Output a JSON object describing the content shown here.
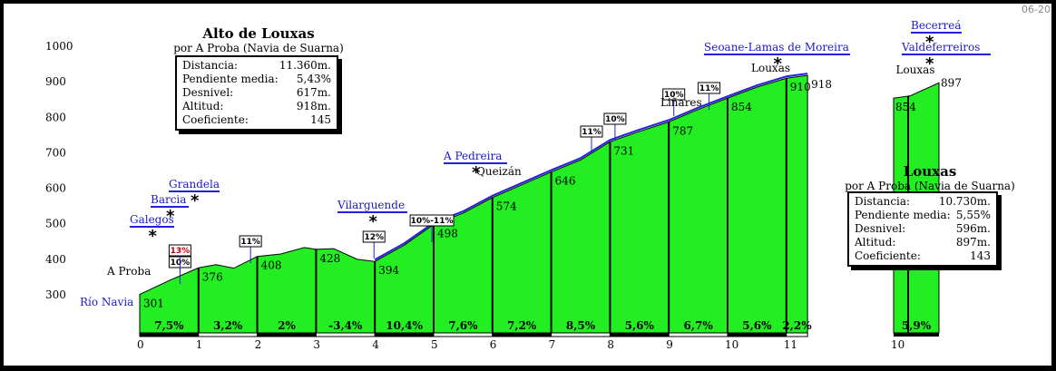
{
  "image_id": "06-20",
  "main_title": "Alto de Louxas",
  "main_subtitle": "por A Proba (Navia de Suarna)",
  "main_stats": [
    {
      "label": "Distancia:",
      "value": "11.360m."
    },
    {
      "label": "Pendiente media:",
      "value": "5,43%"
    },
    {
      "label": "Desnivel:",
      "value": "617m."
    },
    {
      "label": "Altitud:",
      "value": "918m."
    },
    {
      "label": "Coeficiente:",
      "value": "145"
    }
  ],
  "alt_title": "Louxas",
  "alt_subtitle": "por A Proba (Navia de Suarna)",
  "alt_stats": [
    {
      "label": "Distancia:",
      "value": "10.730m."
    },
    {
      "label": "Pendiente media:",
      "value": "5,55%"
    },
    {
      "label": "Desnivel:",
      "value": "596m."
    },
    {
      "label": "Altitud:",
      "value": "897m."
    },
    {
      "label": "Coeficiente:",
      "value": "143"
    }
  ],
  "colors": {
    "fill": "#22ee22",
    "road": "#2020e0",
    "line": "#000000"
  },
  "chart_data": {
    "type": "area",
    "ylim": [
      300,
      1000
    ],
    "xlim": [
      0,
      11.36
    ],
    "yticks": [
      "1000",
      "900",
      "800",
      "700",
      "600",
      "500",
      "400",
      "300"
    ],
    "xticks": [
      "0",
      "1",
      "2",
      "3",
      "4",
      "5",
      "6",
      "7",
      "8",
      "9",
      "10",
      "11"
    ],
    "profile": [
      {
        "x": 0,
        "y": 301
      },
      {
        "x": 0.5,
        "y": 340
      },
      {
        "x": 1,
        "y": 376
      },
      {
        "x": 1.3,
        "y": 385
      },
      {
        "x": 1.6,
        "y": 375
      },
      {
        "x": 2,
        "y": 408
      },
      {
        "x": 2.4,
        "y": 415
      },
      {
        "x": 2.8,
        "y": 433
      },
      {
        "x": 3,
        "y": 428
      },
      {
        "x": 3.3,
        "y": 430
      },
      {
        "x": 3.7,
        "y": 400
      },
      {
        "x": 4,
        "y": 394
      },
      {
        "x": 4.5,
        "y": 440
      },
      {
        "x": 5,
        "y": 498
      },
      {
        "x": 5.5,
        "y": 530
      },
      {
        "x": 6,
        "y": 574
      },
      {
        "x": 6.5,
        "y": 610
      },
      {
        "x": 7,
        "y": 646
      },
      {
        "x": 7.5,
        "y": 680
      },
      {
        "x": 8,
        "y": 731
      },
      {
        "x": 8.5,
        "y": 760
      },
      {
        "x": 9,
        "y": 787
      },
      {
        "x": 9.5,
        "y": 822
      },
      {
        "x": 10,
        "y": 854
      },
      {
        "x": 10.5,
        "y": 885
      },
      {
        "x": 11,
        "y": 910
      },
      {
        "x": 11.36,
        "y": 918
      }
    ],
    "segment_grades": [
      "7,5%",
      "3,2%",
      "2%",
      "-3,4%",
      "10,4%",
      "7,6%",
      "7,2%",
      "8,5%",
      "5,6%",
      "6,7%",
      "5,6%",
      "2,2%"
    ],
    "elevation_labels": [
      {
        "x": 0,
        "y": 301,
        "text": "301"
      },
      {
        "x": 1,
        "y": 376,
        "text": "376"
      },
      {
        "x": 2,
        "y": 408,
        "text": "408"
      },
      {
        "x": 3,
        "y": 428,
        "text": "428"
      },
      {
        "x": 4,
        "y": 394,
        "text": "394"
      },
      {
        "x": 5,
        "y": 498,
        "text": "498"
      },
      {
        "x": 6,
        "y": 574,
        "text": "574"
      },
      {
        "x": 7,
        "y": 646,
        "text": "646"
      },
      {
        "x": 8,
        "y": 731,
        "text": "731"
      },
      {
        "x": 9,
        "y": 787,
        "text": "787"
      },
      {
        "x": 10,
        "y": 854,
        "text": "854"
      },
      {
        "x": 11,
        "y": 910,
        "text": "910"
      },
      {
        "x": 11.36,
        "y": 918,
        "text": "918"
      }
    ],
    "peak_markers": [
      {
        "x": 0.5,
        "label": "10%"
      },
      {
        "x": 0.5,
        "label": "13%"
      },
      {
        "x": 1.7,
        "label": "11%"
      },
      {
        "x": 3.8,
        "label": "12%"
      },
      {
        "x": 4.6,
        "label": "10%-11%"
      },
      {
        "x": 7.5,
        "label": "11%"
      },
      {
        "x": 7.9,
        "label": "10%"
      },
      {
        "x": 8.9,
        "label": "10%"
      },
      {
        "x": 9.5,
        "label": "11%"
      }
    ],
    "places": [
      {
        "x": -0.3,
        "text": "Río Navia"
      },
      {
        "x": 0,
        "text": "A Proba"
      },
      {
        "x": 5.6,
        "text": "Queizán"
      },
      {
        "x": 9.2,
        "text": "Liñares"
      },
      {
        "x": 10.7,
        "text": "Louxas"
      }
    ],
    "junctions": [
      {
        "x": 0.1,
        "text": "Galegos"
      },
      {
        "x": 0.3,
        "text": "Barcia"
      },
      {
        "x": 0.5,
        "text": "Grandela"
      },
      {
        "x": 3.5,
        "text": "Vilarguende"
      },
      {
        "x": 5.5,
        "text": "A Pedreira"
      },
      {
        "x": 10.6,
        "text": "Seoane-Lamas de Moreira"
      }
    ],
    "alt_profile": {
      "xticks": [
        "10"
      ],
      "grade": "5,9%",
      "elevations": [
        {
          "y": 854,
          "text": "854"
        },
        {
          "y": 897,
          "text": "897"
        }
      ],
      "place": "Louxas",
      "junctions": [
        "Becerreá",
        "Valdeferreiros"
      ]
    }
  }
}
